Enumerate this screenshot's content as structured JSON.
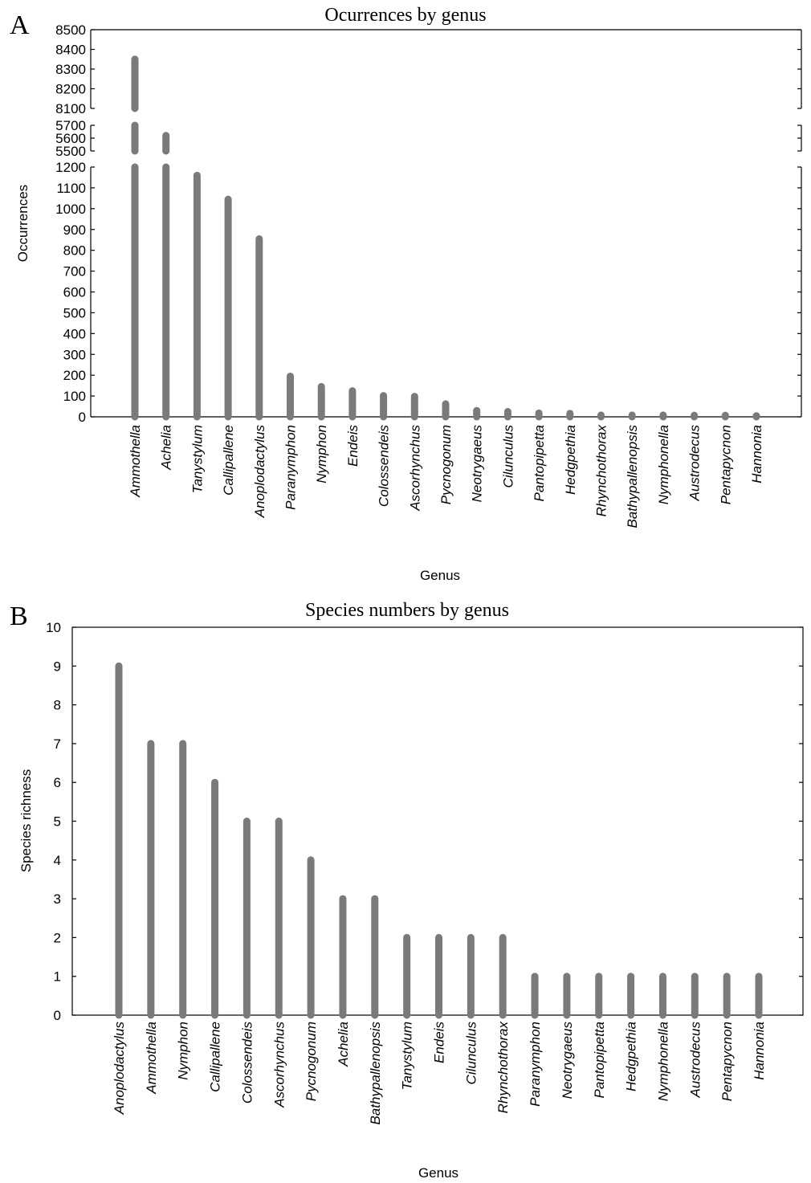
{
  "chart_data": [
    {
      "panel": "A",
      "type": "bar",
      "title": "Ocurrences by genus",
      "xlabel": "Genus",
      "ylabel": "Occurrences",
      "y_axis_break": true,
      "y_segments": [
        {
          "range": [
            0,
            1200
          ],
          "ticks": [
            0,
            100,
            200,
            300,
            400,
            500,
            600,
            700,
            800,
            900,
            1000,
            1100,
            1200
          ]
        },
        {
          "range": [
            5500,
            5700
          ],
          "ticks": [
            5500,
            5600,
            5700
          ]
        },
        {
          "range": [
            8100,
            8500
          ],
          "ticks": [
            8100,
            8200,
            8300,
            8400,
            8500
          ]
        }
      ],
      "categories": [
        "Ammothella",
        "Achelia",
        "Tanystylum",
        "Callipallene",
        "Anoplodactylus",
        "Paranymphon",
        "Nymphon",
        "Endeis",
        "Colossendeis",
        "Ascorhynchus",
        "Pycnogonum",
        "Neotrygaeus",
        "Cilunculus",
        "Pantopipetta",
        "Hedgpethia",
        "Rhynchothorax",
        "Bathypallenopsis",
        "Nymphonella",
        "Austrodecus",
        "Pentapycnon",
        "Hannonia"
      ],
      "values": [
        8350,
        5620,
        1160,
        1045,
        855,
        195,
        145,
        125,
        102,
        98,
        62,
        30,
        25,
        18,
        16,
        8,
        8,
        8,
        7,
        7,
        5
      ],
      "grid": false
    },
    {
      "panel": "B",
      "type": "bar",
      "title": "Species numbers by genus",
      "xlabel": "Genus",
      "ylabel": "Species richness",
      "ylim": [
        0,
        10
      ],
      "ticks": [
        0,
        1,
        2,
        3,
        4,
        5,
        6,
        7,
        8,
        9,
        10
      ],
      "categories": [
        "Anoplodactylus",
        "Ammothella",
        "Nymphon",
        "Callipallene",
        "Colossendeis",
        "Ascorhynchus",
        "Pycnogonum",
        "Achelia",
        "Bathypallenopsis",
        "Tanystylum",
        "Endeis",
        "Cilunculus",
        "Rhynchothorax",
        "Paranymphon",
        "Neotrygaeus",
        "Pantopipetta",
        "Hedgpethia",
        "Nymphonella",
        "Austrodecus",
        "Pentapycnon",
        "Hannonia"
      ],
      "values": [
        9,
        7,
        7,
        6,
        5,
        5,
        4,
        3,
        3,
        2,
        2,
        2,
        2,
        1,
        1,
        1,
        1,
        1,
        1,
        1,
        1
      ],
      "grid": false
    }
  ],
  "colors": {
    "bar": "#7a7a7a",
    "axis": "#000000"
  }
}
